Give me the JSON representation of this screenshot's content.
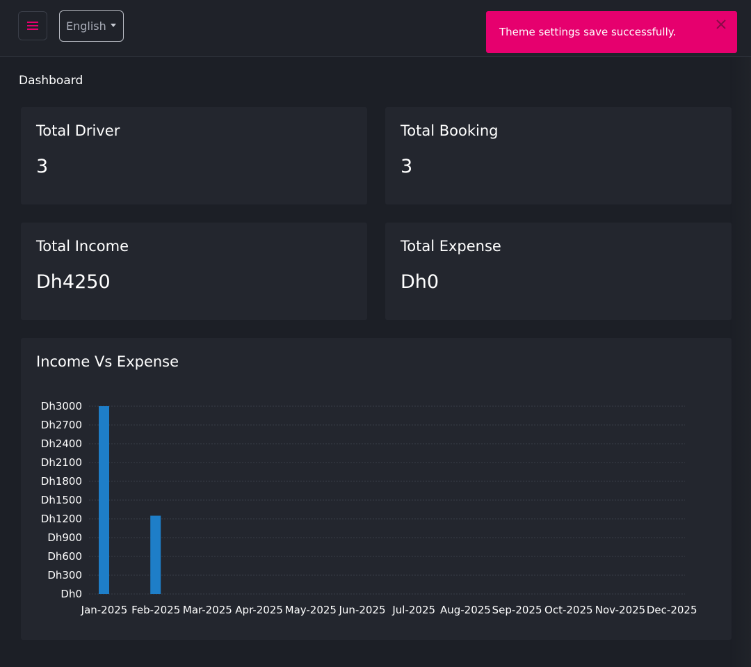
{
  "header": {
    "menu_icon": "hamburger-menu-icon",
    "language": "English",
    "language_caret_icon": "caret-down-icon"
  },
  "toast": {
    "message": "Theme settings save successfully.",
    "color": "#e6006e",
    "close_icon": "close-icon"
  },
  "page": {
    "title": "Dashboard"
  },
  "stats": [
    {
      "label": "Total Driver",
      "value": "3"
    },
    {
      "label": "Total Booking",
      "value": "3"
    },
    {
      "label": "Total Income",
      "value": "Dh4250"
    },
    {
      "label": "Total Expense",
      "value": "Dh0"
    }
  ],
  "chart": {
    "title": "Income Vs Expense"
  },
  "chart_data": {
    "type": "bar",
    "title": "Income Vs Expense",
    "categories": [
      "Jan-2025",
      "Feb-2025",
      "Mar-2025",
      "Apr-2025",
      "May-2025",
      "Jun-2025",
      "Jul-2025",
      "Aug-2025",
      "Sep-2025",
      "Oct-2025",
      "Nov-2025",
      "Dec-2025"
    ],
    "series": [
      {
        "values": [
          3000,
          1250,
          0,
          0,
          0,
          0,
          0,
          0,
          0,
          0,
          0,
          0
        ],
        "color": "#1e7ec8"
      }
    ],
    "y_ticks": [
      "Dh0",
      "Dh300",
      "Dh600",
      "Dh900",
      "Dh1200",
      "Dh1500",
      "Dh1800",
      "Dh2100",
      "Dh2400",
      "Dh2700",
      "Dh3000"
    ],
    "ylim": [
      0,
      3000
    ],
    "grid": true,
    "xlabel": "",
    "ylabel": ""
  }
}
